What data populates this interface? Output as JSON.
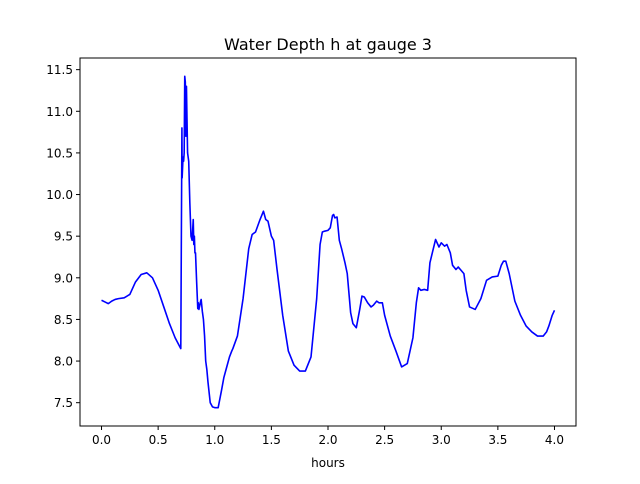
{
  "chart_data": {
    "type": "line",
    "title": "Water Depth h at gauge 3",
    "xlabel": "hours",
    "ylabel": "",
    "xlim": [
      -0.19,
      4.19
    ],
    "ylim": [
      7.22,
      11.64
    ],
    "x_ticks": [
      0.0,
      0.5,
      1.0,
      1.5,
      2.0,
      2.5,
      3.0,
      3.5,
      4.0
    ],
    "x_tick_labels": [
      "0.0",
      "0.5",
      "1.0",
      "1.5",
      "2.0",
      "2.5",
      "3.0",
      "3.5",
      "4.0"
    ],
    "y_ticks": [
      7.5,
      8.0,
      8.5,
      9.0,
      9.5,
      10.0,
      10.5,
      11.0,
      11.5
    ],
    "y_tick_labels": [
      "7.5",
      "8.0",
      "8.5",
      "9.0",
      "9.5",
      "10.0",
      "10.5",
      "11.0",
      "11.5"
    ],
    "grid": false,
    "legend": "none",
    "series": [
      {
        "color": "#0000ff",
        "x": [
          0.0,
          0.03,
          0.06,
          0.09,
          0.12,
          0.15,
          0.2,
          0.25,
          0.3,
          0.35,
          0.4,
          0.45,
          0.5,
          0.55,
          0.6,
          0.65,
          0.7,
          0.71,
          0.712,
          0.72,
          0.725,
          0.73,
          0.735,
          0.74,
          0.745,
          0.75,
          0.755,
          0.76,
          0.77,
          0.78,
          0.79,
          0.8,
          0.81,
          0.815,
          0.82,
          0.825,
          0.83,
          0.84,
          0.85,
          0.855,
          0.86,
          0.87,
          0.875,
          0.88,
          0.89,
          0.9,
          0.91,
          0.92,
          0.93,
          0.94,
          0.96,
          0.98,
          1.0,
          1.03,
          1.06,
          1.08,
          1.1,
          1.13,
          1.15,
          1.16,
          1.2,
          1.25,
          1.3,
          1.33,
          1.36,
          1.4,
          1.43,
          1.45,
          1.47,
          1.5,
          1.52,
          1.55,
          1.6,
          1.65,
          1.7,
          1.75,
          1.8,
          1.85,
          1.9,
          1.93,
          1.95,
          1.97,
          2.0,
          2.02,
          2.04,
          2.05,
          2.06,
          2.08,
          2.1,
          2.12,
          2.15,
          2.17,
          2.2,
          2.22,
          2.25,
          2.28,
          2.3,
          2.32,
          2.35,
          2.38,
          2.4,
          2.43,
          2.45,
          2.48,
          2.5,
          2.55,
          2.6,
          2.65,
          2.7,
          2.75,
          2.78,
          2.8,
          2.82,
          2.85,
          2.88,
          2.9,
          2.93,
          2.95,
          2.98,
          3.0,
          3.03,
          3.05,
          3.08,
          3.1,
          3.13,
          3.15,
          3.2,
          3.22,
          3.25,
          3.3,
          3.35,
          3.4,
          3.45,
          3.5,
          3.53,
          3.55,
          3.57,
          3.6,
          3.65,
          3.7,
          3.75,
          3.8,
          3.85,
          3.88,
          3.9,
          3.93,
          3.95,
          3.98,
          4.0
        ],
        "y": [
          8.73,
          8.71,
          8.69,
          8.72,
          8.74,
          8.75,
          8.76,
          8.8,
          8.95,
          9.04,
          9.06,
          9.0,
          8.85,
          8.65,
          8.45,
          8.28,
          8.15,
          10.8,
          10.2,
          10.45,
          10.4,
          10.5,
          11.42,
          11.35,
          10.7,
          11.3,
          10.9,
          10.5,
          10.4,
          9.9,
          9.5,
          9.45,
          9.7,
          9.4,
          9.5,
          9.3,
          9.3,
          8.95,
          8.63,
          8.7,
          8.62,
          8.68,
          8.72,
          8.74,
          8.6,
          8.5,
          8.3,
          8.0,
          7.9,
          7.75,
          7.5,
          7.45,
          7.44,
          7.44,
          7.65,
          7.8,
          7.9,
          8.05,
          8.12,
          8.15,
          8.3,
          8.75,
          9.35,
          9.52,
          9.55,
          9.7,
          9.8,
          9.7,
          9.68,
          9.5,
          9.45,
          9.1,
          8.55,
          8.12,
          7.95,
          7.88,
          7.88,
          8.05,
          8.75,
          9.4,
          9.55,
          9.56,
          9.57,
          9.6,
          9.75,
          9.76,
          9.72,
          9.73,
          9.45,
          9.35,
          9.18,
          9.05,
          8.58,
          8.45,
          8.4,
          8.62,
          8.78,
          8.77,
          8.7,
          8.65,
          8.67,
          8.72,
          8.7,
          8.7,
          8.55,
          8.3,
          8.12,
          7.93,
          7.97,
          8.28,
          8.7,
          8.88,
          8.85,
          8.86,
          8.85,
          9.18,
          9.35,
          9.46,
          9.37,
          9.42,
          9.38,
          9.4,
          9.3,
          9.15,
          9.1,
          9.13,
          9.05,
          8.85,
          8.65,
          8.62,
          8.75,
          8.97,
          9.01,
          9.02,
          9.15,
          9.2,
          9.2,
          9.05,
          8.72,
          8.55,
          8.42,
          8.35,
          8.3,
          8.3,
          8.3,
          8.35,
          8.42,
          8.55,
          8.61
        ]
      }
    ]
  }
}
